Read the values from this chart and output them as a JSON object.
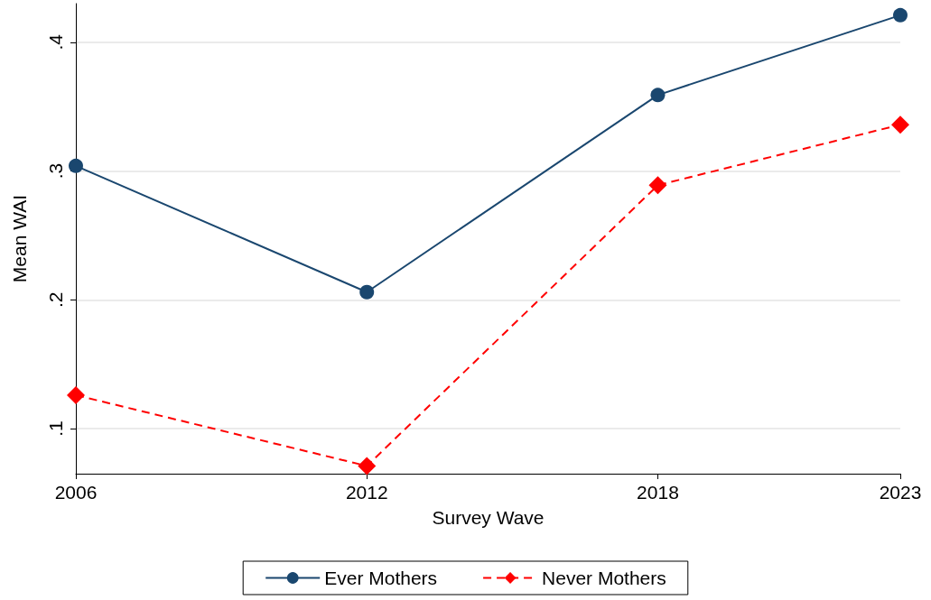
{
  "chart_data": {
    "type": "line",
    "xlabel": "Survey Wave",
    "ylabel": "Mean WAI",
    "x": [
      2006,
      2012,
      2018,
      2023
    ],
    "series": [
      {
        "name": "Ever Mothers",
        "color": "#1a476f",
        "values": [
          0.304,
          0.206,
          0.359,
          0.421
        ],
        "marker": "circle",
        "line_style": "solid"
      },
      {
        "name": "Never Mothers",
        "color": "#ff0000",
        "values": [
          0.126,
          0.071,
          0.289,
          0.336
        ],
        "marker": "diamond",
        "line_style": "dashed"
      }
    ],
    "xlim": [
      2006,
      2023
    ],
    "xticks": [
      2006,
      2012,
      2018,
      2023
    ],
    "ylim": [
      0.065,
      0.43
    ],
    "yticks": [
      {
        "value": 0.1,
        "label": ".1"
      },
      {
        "value": 0.2,
        "label": ".2"
      },
      {
        "value": 0.3,
        "label": ".3"
      },
      {
        "value": 0.4,
        "label": ".4"
      }
    ],
    "grid": "y",
    "legend": "bottom"
  }
}
